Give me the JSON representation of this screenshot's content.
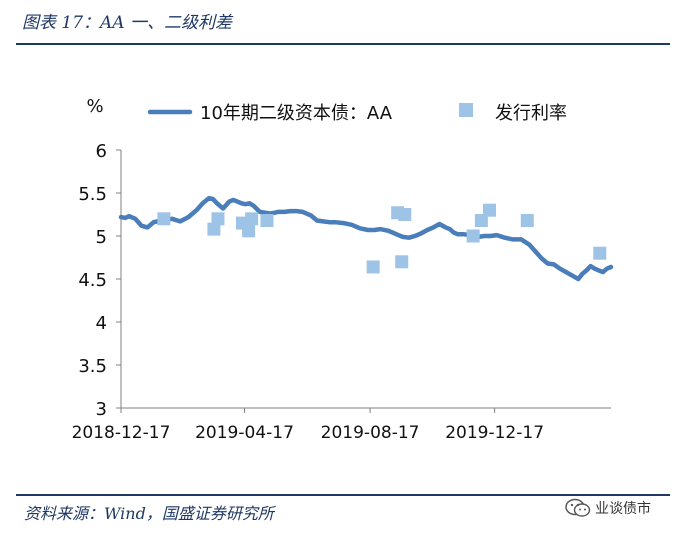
{
  "figure": {
    "title": "图表 17：AA 一、二级利差",
    "source": "资料来源：Wind，国盛证券研究所",
    "watermark": "业谈债市"
  },
  "colors": {
    "line": "#4a7ebb",
    "marker": "#9dc3e6",
    "text": "#1f3864"
  },
  "chart_data": {
    "type": "line",
    "title": "",
    "ylabel": "%",
    "ylim": [
      3,
      6
    ],
    "yticks": [
      "3",
      "3.5",
      "4",
      "4.5",
      "5",
      "5.5",
      "6"
    ],
    "xlim": [
      0,
      480
    ],
    "xticks": [
      {
        "label": "2018-12-17",
        "x": 0
      },
      {
        "label": "2019-04-17",
        "x": 121
      },
      {
        "label": "2019-08-17",
        "x": 244
      },
      {
        "label": "2019-12-17",
        "x": 366
      }
    ],
    "legend": [
      "10年期二级资本债：AA",
      "发行利率"
    ],
    "series": [
      {
        "name": "10年期二级资本债：AA",
        "type": "line",
        "x": [
          0,
          4,
          8,
          14,
          20,
          26,
          32,
          40,
          50,
          58,
          66,
          74,
          80,
          86,
          90,
          94,
          100,
          106,
          110,
          114,
          118,
          122,
          126,
          130,
          136,
          142,
          146,
          150,
          154,
          160,
          166,
          172,
          178,
          186,
          192,
          198,
          204,
          210,
          218,
          226,
          234,
          242,
          248,
          254,
          262,
          270,
          276,
          282,
          288,
          294,
          300,
          306,
          312,
          318,
          322,
          326,
          330,
          336,
          342,
          350,
          356,
          362,
          368,
          376,
          384,
          392,
          400,
          406,
          412,
          418,
          424,
          430,
          436,
          442,
          448,
          452,
          456,
          460,
          464,
          468,
          472,
          476,
          480
        ],
        "values": [
          5.22,
          5.21,
          5.23,
          5.2,
          5.12,
          5.1,
          5.16,
          5.18,
          5.2,
          5.17,
          5.22,
          5.3,
          5.38,
          5.44,
          5.43,
          5.38,
          5.32,
          5.4,
          5.42,
          5.4,
          5.38,
          5.37,
          5.38,
          5.35,
          5.28,
          5.27,
          5.26,
          5.27,
          5.28,
          5.28,
          5.29,
          5.29,
          5.28,
          5.24,
          5.18,
          5.17,
          5.16,
          5.16,
          5.15,
          5.13,
          5.09,
          5.07,
          5.07,
          5.08,
          5.06,
          5.02,
          4.99,
          4.98,
          5.0,
          5.03,
          5.07,
          5.1,
          5.14,
          5.1,
          5.08,
          5.04,
          5.02,
          5.02,
          5.01,
          4.99,
          5.0,
          5.0,
          5.01,
          4.98,
          4.96,
          4.96,
          4.9,
          4.82,
          4.74,
          4.68,
          4.67,
          4.62,
          4.58,
          4.54,
          4.5,
          4.56,
          4.6,
          4.65,
          4.62,
          4.6,
          4.58,
          4.62,
          4.64
        ]
      },
      {
        "name": "发行利率",
        "type": "scatter",
        "points": [
          {
            "x": 42,
            "y": 5.2
          },
          {
            "x": 91,
            "y": 5.08
          },
          {
            "x": 95,
            "y": 5.2
          },
          {
            "x": 119,
            "y": 5.15
          },
          {
            "x": 125,
            "y": 5.06
          },
          {
            "x": 128,
            "y": 5.2
          },
          {
            "x": 143,
            "y": 5.18
          },
          {
            "x": 247,
            "y": 4.64
          },
          {
            "x": 271,
            "y": 5.27
          },
          {
            "x": 275,
            "y": 4.7
          },
          {
            "x": 278,
            "y": 5.25
          },
          {
            "x": 345,
            "y": 5.0
          },
          {
            "x": 353,
            "y": 5.18
          },
          {
            "x": 361,
            "y": 5.3
          },
          {
            "x": 398,
            "y": 5.18
          },
          {
            "x": 469,
            "y": 4.8
          }
        ]
      }
    ]
  }
}
